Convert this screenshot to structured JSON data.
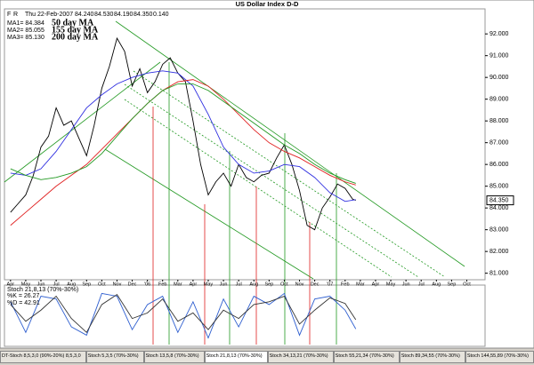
{
  "toolbar": {
    "buttons": [
      "F",
      "R"
    ]
  },
  "chart_data": [
    {
      "type": "line",
      "title": "US Dollar Index  D-D",
      "quote": [
        "Thu 22-Feb-2007",
        "84.240",
        "84.530",
        "84.190",
        "84.350",
        "0.140"
      ],
      "color": "#000000",
      "x": [
        0,
        0.5,
        1,
        1.5,
        2,
        2.5,
        3,
        3.5,
        4,
        4.5,
        5,
        5.5,
        6,
        6.5,
        7,
        7.5,
        8,
        8.5,
        9,
        9.5,
        10,
        10.5,
        11,
        11.5,
        12,
        12.5,
        13,
        13.5,
        14,
        14.5,
        15,
        15.5,
        16,
        16.5,
        17,
        17.5,
        18,
        18.5,
        19,
        19.5,
        20,
        20.5,
        21,
        21.5,
        22,
        22.5,
        22.7
      ],
      "values": [
        83.8,
        84.2,
        84.6,
        85.5,
        86.8,
        87.3,
        88.6,
        87.8,
        88.0,
        87.2,
        86.4,
        87.8,
        89.5,
        90.5,
        91.8,
        91.2,
        89.6,
        90.4,
        89.3,
        89.8,
        90.6,
        90.9,
        90.2,
        89.8,
        88.0,
        86.0,
        84.6,
        85.2,
        85.6,
        85.0,
        86.0,
        85.4,
        85.2,
        85.5,
        85.6,
        86.3,
        86.9,
        86.0,
        84.8,
        83.2,
        83.0,
        84.0,
        84.5,
        85.1,
        84.9,
        84.4,
        84.35
      ],
      "last_price": {
        "value": 84.35,
        "label": "84.350"
      },
      "series": [
        {
          "name": "50 day MA",
          "tag": "MA1= 84.384",
          "color": "#2f2fe0",
          "x": [
            0,
            1,
            2,
            3,
            4,
            5,
            6,
            7,
            8,
            9,
            10,
            11,
            12,
            13,
            14,
            15,
            16,
            17,
            18,
            19,
            20,
            21,
            22,
            22.7
          ],
          "values": [
            85.6,
            85.5,
            85.8,
            86.6,
            87.6,
            88.6,
            89.2,
            89.7,
            90.0,
            90.2,
            90.3,
            90.2,
            89.6,
            88.3,
            86.8,
            86.0,
            85.6,
            85.7,
            86.0,
            85.9,
            85.4,
            84.7,
            84.3,
            84.38
          ]
        },
        {
          "name": "155 day MA",
          "tag": "MA2= 85.055",
          "color": "#e02020",
          "x": [
            0,
            1,
            2,
            3,
            4,
            5,
            6,
            7,
            8,
            9,
            10,
            11,
            12,
            13,
            14,
            15,
            16,
            17,
            18,
            19,
            20,
            21,
            22,
            22.7
          ],
          "values": [
            83.2,
            83.8,
            84.4,
            85.0,
            85.5,
            86.0,
            86.7,
            87.4,
            88.1,
            88.8,
            89.4,
            89.8,
            89.9,
            89.6,
            89.0,
            88.3,
            87.6,
            87.0,
            86.6,
            86.3,
            85.9,
            85.5,
            85.2,
            85.055
          ]
        },
        {
          "name": "200 day MA",
          "tag": "MA3= 85.130",
          "color": "#229922",
          "x": [
            0,
            1,
            2,
            3,
            4,
            5,
            6,
            7,
            8,
            9,
            10,
            11,
            12,
            13,
            14,
            15,
            16,
            17,
            18,
            19,
            20,
            21,
            22,
            22.7
          ],
          "values": [
            85.8,
            85.5,
            85.3,
            85.4,
            85.6,
            85.9,
            86.5,
            87.3,
            88.1,
            88.8,
            89.4,
            89.7,
            89.7,
            89.4,
            88.9,
            88.4,
            87.9,
            87.4,
            86.9,
            86.5,
            86.0,
            85.6,
            85.3,
            85.13
          ]
        }
      ],
      "xlim": [
        -0.4,
        31.2
      ],
      "ylim": [
        80.7,
        93.15
      ],
      "xticks": [
        {
          "value": 0,
          "label": "Apr"
        },
        {
          "value": 1,
          "label": "May"
        },
        {
          "value": 2,
          "label": "Jun"
        },
        {
          "value": 3,
          "label": "Jul"
        },
        {
          "value": 4,
          "label": "Aug"
        },
        {
          "value": 5,
          "label": "Sep"
        },
        {
          "value": 6,
          "label": "Oct"
        },
        {
          "value": 7,
          "label": "Nov"
        },
        {
          "value": 8,
          "label": "Dec"
        },
        {
          "value": 9,
          "label": "'06"
        },
        {
          "value": 10,
          "label": "Feb"
        },
        {
          "value": 11,
          "label": "Mar"
        },
        {
          "value": 12,
          "label": "Apr"
        },
        {
          "value": 13,
          "label": "May"
        },
        {
          "value": 14,
          "label": "Jun"
        },
        {
          "value": 15,
          "label": "Jul"
        },
        {
          "value": 16,
          "label": "Aug"
        },
        {
          "value": 17,
          "label": "Sep"
        },
        {
          "value": 18,
          "label": "Oct"
        },
        {
          "value": 19,
          "label": "Nov"
        },
        {
          "value": 20,
          "label": "Dec"
        },
        {
          "value": 21,
          "label": "'07"
        },
        {
          "value": 22,
          "label": "Feb"
        },
        {
          "value": 23,
          "label": "Mar"
        },
        {
          "value": 24,
          "label": "Apr"
        },
        {
          "value": 25,
          "label": "May"
        },
        {
          "value": 26,
          "label": "Jun"
        },
        {
          "value": 27,
          "label": "Jul"
        },
        {
          "value": 28,
          "label": "Aug"
        },
        {
          "value": 29,
          "label": "Sep"
        },
        {
          "value": 30,
          "label": "Oct"
        }
      ],
      "yticks": [
        {
          "value": 81,
          "label": "81.000"
        },
        {
          "value": 82,
          "label": "82.000"
        },
        {
          "value": 83,
          "label": "83.000"
        },
        {
          "value": 84,
          "label": "84.000"
        },
        {
          "value": 85,
          "label": "85.000"
        },
        {
          "value": 86,
          "label": "86.000"
        },
        {
          "value": 87,
          "label": "87.000"
        },
        {
          "value": 88,
          "label": "88.000"
        },
        {
          "value": 89,
          "label": "89.000"
        },
        {
          "value": 90,
          "label": "90.000"
        },
        {
          "value": 91,
          "label": "91.000"
        },
        {
          "value": 92,
          "label": "92.000"
        }
      ]
    },
    {
      "type": "line",
      "title": "Stoch 21,8,13 (70%-30%)",
      "series": [
        {
          "name": "%K",
          "tag": "%K = 26.27",
          "color": "#2f5fd0",
          "x": [
            0,
            1,
            2,
            3,
            4,
            5,
            6,
            7,
            8,
            9,
            10,
            11,
            12,
            13,
            14,
            15,
            16,
            17,
            18,
            19,
            20,
            21,
            22,
            22.7
          ],
          "values": [
            75,
            20,
            85,
            80,
            30,
            15,
            90,
            85,
            25,
            70,
            85,
            20,
            75,
            10,
            80,
            30,
            85,
            70,
            90,
            15,
            80,
            85,
            60,
            26.27
          ]
        },
        {
          "name": "%D",
          "tag": "%D = 42.91",
          "color": "#333333",
          "x": [
            0,
            1,
            2,
            3,
            4,
            5,
            6,
            7,
            8,
            9,
            10,
            11,
            12,
            13,
            14,
            15,
            16,
            17,
            18,
            19,
            20,
            21,
            22,
            22.7
          ],
          "values": [
            70,
            40,
            60,
            85,
            45,
            20,
            70,
            88,
            45,
            55,
            80,
            40,
            55,
            25,
            60,
            45,
            70,
            75,
            85,
            35,
            60,
            82,
            72,
            42.91
          ]
        }
      ],
      "xlim": [
        -0.4,
        31.2
      ],
      "ylim": [
        -5,
        105
      ]
    }
  ],
  "tabs": [
    "DT-Stoch 8,5,3,0 (90%-20%) 8,5,3,0",
    "Stoch 5,3,5 (70%-30%)",
    "Stoch 13,5,8 (70%-30%)",
    "Stoch 21,8,13 (70%-30%)",
    "Stoch 34,13,21 (70%-30%)",
    "Stoch 55,21,34 (70%-30%)",
    "Stoch 89,34,55 (70%-30%)",
    "Stoch 144,55,89 (70%-30%)"
  ]
}
